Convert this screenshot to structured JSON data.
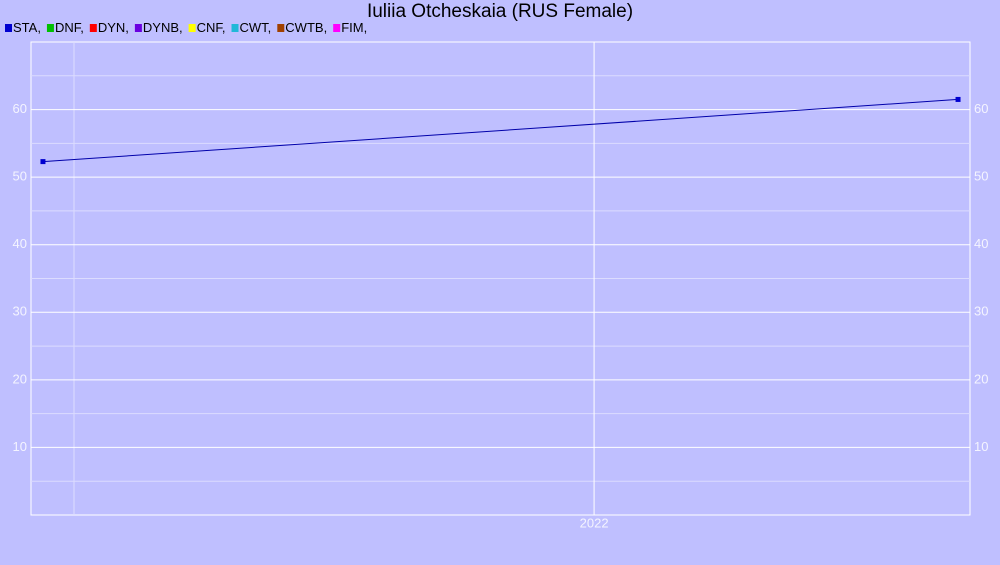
{
  "chart_data": {
    "type": "line",
    "title": "Iuliia Otcheskaia (RUS Female)",
    "x": [
      2020.94,
      2022.7
    ],
    "series": [
      {
        "name": "STA,",
        "color": "#0000d0",
        "values": [
          52.3,
          61.5
        ]
      },
      {
        "name": "DNF,",
        "color": "#00c000",
        "values": [
          null,
          null
        ]
      },
      {
        "name": "DYN,",
        "color": "#ff0000",
        "values": [
          null,
          null
        ]
      },
      {
        "name": "DYNB,",
        "color": "#6a00e0",
        "values": [
          null,
          null
        ]
      },
      {
        "name": "CNF,",
        "color": "#ffff00",
        "values": [
          null,
          null
        ]
      },
      {
        "name": "CWT,",
        "color": "#20b8d8",
        "values": [
          null,
          null
        ]
      },
      {
        "name": "CWTB,",
        "color": "#a04000",
        "values": [
          null,
          null
        ]
      },
      {
        "name": "FIM,",
        "color": "#ff00ff",
        "values": [
          null,
          null
        ]
      }
    ],
    "line_color": "#0000aa",
    "xlim": [
      2020.917,
      2022.723
    ],
    "xticks": [
      2022
    ],
    "ylim": [
      0,
      70
    ],
    "yticks": [
      10,
      20,
      30,
      40,
      50,
      60
    ],
    "grid": true
  }
}
